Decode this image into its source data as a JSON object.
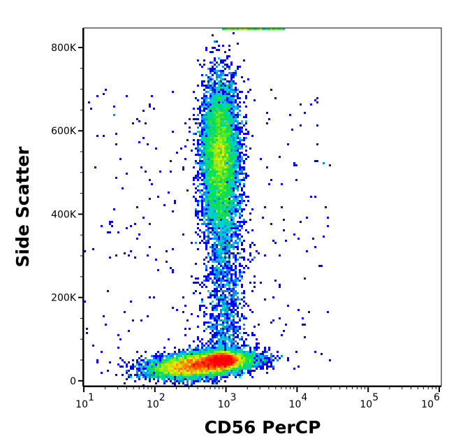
{
  "chart_data": {
    "type": "scatter",
    "style": "density-dot-plot",
    "xlabel": "CD56 PerCP",
    "ylabel": "Side Scatter",
    "x_scale": "log",
    "xlim": [
      10,
      1070000
    ],
    "ylim": [
      -12000,
      847000
    ],
    "grid": false,
    "legend": "none",
    "x_ticks": [
      {
        "value": 10,
        "base": "10",
        "exp": "1"
      },
      {
        "value": 100,
        "base": "10",
        "exp": "2"
      },
      {
        "value": 1000,
        "base": "10",
        "exp": "3"
      },
      {
        "value": 10000,
        "base": "10",
        "exp": "4"
      },
      {
        "value": 100000,
        "base": "10",
        "exp": "5"
      },
      {
        "value": 1000000,
        "base": "10",
        "exp": "6"
      }
    ],
    "y_ticks": [
      {
        "value": 0,
        "label": "0"
      },
      {
        "value": 200000,
        "label": "200K"
      },
      {
        "value": 400000,
        "label": "400K"
      },
      {
        "value": 600000,
        "label": "600K"
      },
      {
        "value": 800000,
        "label": "800K"
      }
    ],
    "y_minor_step": 50000,
    "density_colors": [
      "#0000ff",
      "#00c8ff",
      "#00e040",
      "#f0f000",
      "#ff0000"
    ],
    "populations": [
      {
        "x_center": 450,
        "x_log_sd": 0.35,
        "y_center": 38000,
        "y_sd": 14000,
        "events": 9000
      },
      {
        "x_center": 900,
        "x_log_sd": 0.12,
        "y_center": 50000,
        "y_sd": 10000,
        "events": 3500
      },
      {
        "x_center": 830,
        "x_log_sd": 0.13,
        "y_center": 540000,
        "y_sd": 90000,
        "events": 7000
      },
      {
        "x_center": 950,
        "x_log_sd": 0.15,
        "y_range": [
          80000,
          450000
        ],
        "events": 1600
      },
      {
        "x_range": [
          900,
          6500
        ],
        "y_center": 846000,
        "events": 300
      },
      {
        "x_range": [
          10,
          30000
        ],
        "y_range": [
          0,
          700000
        ],
        "events": 300
      }
    ]
  }
}
